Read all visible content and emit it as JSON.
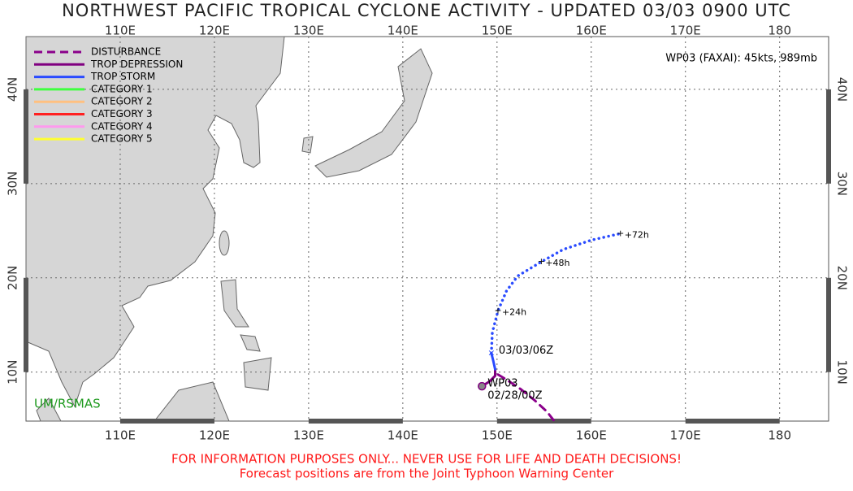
{
  "header": {
    "title": "NORTHWEST PACIFIC TROPICAL CYCLONE ACTIVITY - UPDATED 03/03 0900 UTC"
  },
  "map": {
    "lonlim": [
      100,
      185.2
    ],
    "latlim": [
      4.8,
      45.6
    ],
    "lon_ticks": [
      {
        "value": 110,
        "label": "110E"
      },
      {
        "value": 120,
        "label": "120E"
      },
      {
        "value": 130,
        "label": "130E"
      },
      {
        "value": 140,
        "label": "140E"
      },
      {
        "value": 150,
        "label": "150E"
      },
      {
        "value": 160,
        "label": "160E"
      },
      {
        "value": 170,
        "label": "170E"
      },
      {
        "value": 180,
        "label": "180"
      }
    ],
    "lat_ticks": [
      {
        "value": 10,
        "label": "10N"
      },
      {
        "value": 20,
        "label": "20N"
      },
      {
        "value": 30,
        "label": "30N"
      },
      {
        "value": 40,
        "label": "40N"
      }
    ],
    "storm_info": "WP03 (FAXAI): 45kts, 989mb",
    "credit": "UM/RSMAS"
  },
  "legend": [
    {
      "label": "DISTURBANCE",
      "color": "#8b008b",
      "style": "dashed"
    },
    {
      "label": "TROP DEPRESSION",
      "color": "#800080",
      "style": "solid"
    },
    {
      "label": "TROP STORM",
      "color": "#2a4bff",
      "style": "solid"
    },
    {
      "label": "CATEGORY 1",
      "color": "#40ff40",
      "style": "solid"
    },
    {
      "label": "CATEGORY 2",
      "color": "#ffc080",
      "style": "solid"
    },
    {
      "label": "CATEGORY 3",
      "color": "#ff2020",
      "style": "solid"
    },
    {
      "label": "CATEGORY 4",
      "color": "#ff99ee",
      "style": "solid"
    },
    {
      "label": "CATEGORY 5",
      "color": "#ffff30",
      "style": "solid"
    }
  ],
  "track": {
    "name": "WP03",
    "start_time": "02/28/00Z",
    "current_time": "03/03/06Z",
    "start": {
      "lon": 148.4,
      "lat": 8.5
    },
    "disturbance": {
      "lon": [
        156,
        155.3,
        154,
        152.5,
        151,
        150
      ],
      "lat": [
        4.9,
        5.8,
        7,
        8.2,
        9.2,
        9.8
      ]
    },
    "depression": {
      "lon": [
        148.4,
        149.2,
        149.8,
        149.8
      ],
      "lat": [
        8.5,
        9,
        9.6,
        10.3
      ]
    },
    "storm": {
      "lon": [
        149.8,
        149.6,
        149.4
      ],
      "lat": [
        10.3,
        11.2,
        12
      ]
    },
    "forecast": {
      "lon": [
        149.4,
        149.5,
        150.1,
        151,
        152.2,
        154.7,
        157,
        160,
        163.1
      ],
      "lat": [
        12,
        14.2,
        16.5,
        18.6,
        20.2,
        21.7,
        23,
        24,
        24.7
      ]
    },
    "forecast_points": [
      {
        "lon": 150.1,
        "lat": 16.5,
        "label": "+24h"
      },
      {
        "lon": 154.7,
        "lat": 21.7,
        "label": "+48h"
      },
      {
        "lon": 163.1,
        "lat": 24.7,
        "label": "+72h"
      }
    ]
  },
  "footer": {
    "warning": "FOR INFORMATION PURPOSES ONLY... NEVER USE FOR LIFE AND DEATH DECISIONS!",
    "note": "Forecast positions are from the Joint Typhoon Warning Center"
  }
}
